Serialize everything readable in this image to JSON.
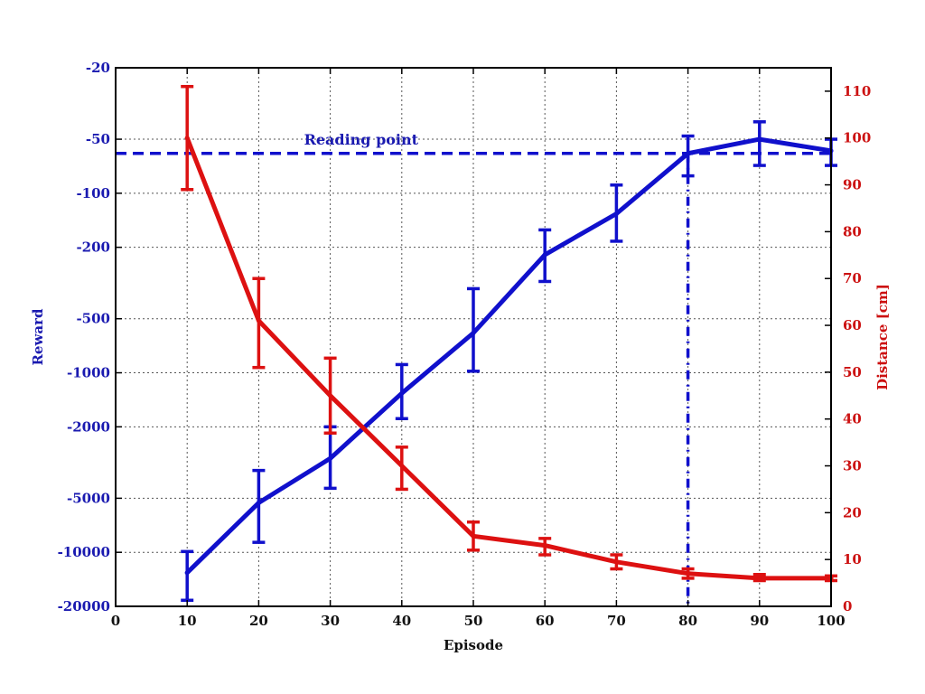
{
  "chart_data": {
    "type": "line",
    "xlabel": "Episode",
    "ylabel_left": "Reward",
    "ylabel_right": "Distance [cm]",
    "x_ticks": [
      0,
      10,
      20,
      30,
      40,
      50,
      60,
      70,
      80,
      90,
      100
    ],
    "xlim": [
      0,
      100
    ],
    "left_ticks": [
      {
        "value": -20,
        "label": "-20"
      },
      {
        "value": -50,
        "label": "-50"
      },
      {
        "value": -100,
        "label": "-100"
      },
      {
        "value": -200,
        "label": "-200"
      },
      {
        "value": -500,
        "label": "-500"
      },
      {
        "value": -1000,
        "label": "-1000"
      },
      {
        "value": -2000,
        "label": "-2000"
      },
      {
        "value": -5000,
        "label": "-5000"
      },
      {
        "value": -10000,
        "label": "-10000"
      },
      {
        "value": -20000,
        "label": "-20000"
      }
    ],
    "left_scale": "symlog (log of magnitude, inverted)",
    "left_ylim": [
      -20000,
      -20
    ],
    "right_ticks": [
      0,
      10,
      20,
      30,
      40,
      50,
      60,
      70,
      80,
      90,
      100,
      110
    ],
    "right_ylim": [
      0,
      115
    ],
    "grid": true,
    "series": [
      {
        "axis": "left",
        "color": "#1010cc",
        "x": [
          10,
          20,
          30,
          40,
          50,
          60,
          70,
          80,
          90,
          100
        ],
        "y": [
          -13000,
          -5300,
          -3000,
          -1300,
          -600,
          -220,
          -130,
          -60,
          -50,
          -58
        ],
        "err_low": [
          -18500,
          -8800,
          -4400,
          -1800,
          -980,
          -310,
          -185,
          -80,
          -70,
          -70
        ],
        "err_high": [
          -9900,
          -3500,
          -2000,
          -900,
          -340,
          -160,
          -90,
          -48,
          -40,
          -50
        ]
      },
      {
        "axis": "right",
        "color": "#dd1111",
        "x": [
          10,
          20,
          30,
          40,
          50,
          60,
          70,
          80,
          90,
          100
        ],
        "y": [
          100,
          61,
          45,
          30,
          15,
          13,
          9.5,
          7,
          6,
          6
        ],
        "err_low": [
          89,
          51,
          37,
          25,
          12,
          11,
          8,
          6,
          5.5,
          5.5
        ],
        "err_high": [
          111,
          70,
          53,
          34,
          18,
          14.5,
          11,
          8,
          6.8,
          6.5
        ]
      }
    ],
    "annotation": {
      "text": "Reading point",
      "x": 80,
      "y": -60,
      "style": "dashed crosshair"
    }
  }
}
